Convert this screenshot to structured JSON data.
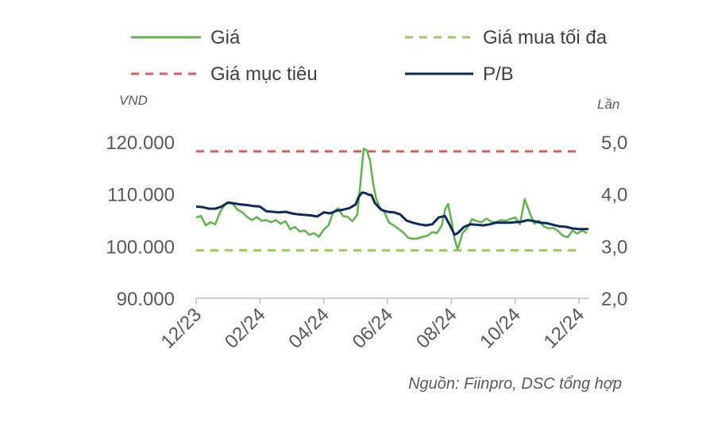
{
  "chart_data": {
    "type": "line",
    "title": "",
    "legend": [
      {
        "name": "Giá",
        "color": "#5DB44A",
        "dash": false
      },
      {
        "name": "Giá mua tối đa",
        "color": "#92D050",
        "dash": true
      },
      {
        "name": "Giá mục tiêu",
        "color": "#E05A5A",
        "dash": true
      },
      {
        "name": "P/B",
        "color": "#0D2A5C",
        "dash": false
      }
    ],
    "y_left": {
      "label": "VND",
      "min": 90000,
      "max": 120000,
      "ticks": [
        "90.000",
        "100.000",
        "110.000",
        "120.000"
      ],
      "tick_values": [
        90000,
        100000,
        110000,
        120000
      ]
    },
    "y_right": {
      "label": "Lần",
      "min": 2.0,
      "max": 5.0,
      "ticks": [
        "2,0",
        "3,0",
        "4,0",
        "5,0"
      ],
      "tick_values": [
        2.0,
        3.0,
        4.0,
        5.0
      ]
    },
    "x": {
      "min": 0,
      "max": 12.3,
      "tick_labels": [
        "12/23",
        "02/24",
        "04/24",
        "06/24",
        "08/24",
        "10/24",
        "12/24"
      ],
      "tick_values": [
        0,
        2,
        4,
        6,
        8,
        10,
        12
      ]
    },
    "reference_lines": [
      {
        "name": "Giá mục tiêu",
        "axis": "left",
        "value": 118200
      },
      {
        "name": "Giá mua tối đa",
        "axis": "left",
        "value": 99200
      }
    ],
    "series": [
      {
        "name": "Giá",
        "axis": "left",
        "x": [
          0,
          0.15,
          0.3,
          0.45,
          0.6,
          0.75,
          0.9,
          1.0,
          1.15,
          1.3,
          1.45,
          1.6,
          1.75,
          1.9,
          2.05,
          2.2,
          2.35,
          2.5,
          2.65,
          2.8,
          2.95,
          3.1,
          3.25,
          3.4,
          3.55,
          3.7,
          3.85,
          4.0,
          4.15,
          4.3,
          4.45,
          4.6,
          4.75,
          4.9,
          5.05,
          5.15,
          5.25,
          5.35,
          5.45,
          5.55,
          5.65,
          5.75,
          5.9,
          6.05,
          6.2,
          6.35,
          6.5,
          6.65,
          6.8,
          6.95,
          7.1,
          7.25,
          7.4,
          7.55,
          7.7,
          7.8,
          7.9,
          8.0,
          8.1,
          8.2,
          8.35,
          8.5,
          8.65,
          8.8,
          8.95,
          9.1,
          9.25,
          9.4,
          9.55,
          9.7,
          9.85,
          10.0,
          10.15,
          10.3,
          10.45,
          10.6,
          10.75,
          10.9,
          11.05,
          11.2,
          11.35,
          11.5,
          11.65,
          11.8,
          11.95,
          12.1,
          12.25
        ],
        "y": [
          105500,
          105800,
          104000,
          104600,
          104200,
          106500,
          108000,
          108300,
          108100,
          107000,
          106500,
          105600,
          105000,
          105600,
          104900,
          105000,
          104600,
          105000,
          104300,
          104800,
          103200,
          103700,
          102800,
          103000,
          102200,
          102500,
          101800,
          103200,
          104000,
          106500,
          107300,
          105800,
          105600,
          104800,
          106000,
          112000,
          118700,
          118400,
          116500,
          112000,
          109000,
          107500,
          106500,
          104500,
          104000,
          103300,
          102600,
          101600,
          101400,
          101500,
          101800,
          102000,
          102700,
          102500,
          104000,
          107000,
          108100,
          105000,
          101500,
          99400,
          102500,
          103500,
          105200,
          104800,
          104600,
          105300,
          104700,
          104600,
          105000,
          104900,
          105200,
          105500,
          104200,
          109000,
          106500,
          104300,
          104900,
          103800,
          103400,
          103500,
          102900,
          102000,
          101700,
          103000,
          102400,
          103000,
          102500
        ]
      },
      {
        "name": "P/B",
        "axis": "right",
        "x": [
          0,
          0.2,
          0.4,
          0.6,
          0.8,
          1.0,
          1.2,
          1.4,
          1.6,
          1.8,
          2.0,
          2.2,
          2.4,
          2.6,
          2.8,
          3.0,
          3.2,
          3.4,
          3.6,
          3.8,
          4.0,
          4.2,
          4.4,
          4.6,
          4.8,
          5.0,
          5.1,
          5.2,
          5.3,
          5.4,
          5.5,
          5.6,
          5.8,
          6.0,
          6.2,
          6.4,
          6.6,
          6.8,
          7.0,
          7.2,
          7.4,
          7.6,
          7.8,
          8.0,
          8.1,
          8.2,
          8.4,
          8.6,
          8.8,
          9.0,
          9.2,
          9.4,
          9.6,
          9.8,
          10.0,
          10.2,
          10.4,
          10.6,
          10.8,
          11.0,
          11.2,
          11.4,
          11.6,
          11.8,
          12.0,
          12.2,
          12.3
        ],
        "y": [
          3.76,
          3.75,
          3.72,
          3.72,
          3.76,
          3.84,
          3.82,
          3.8,
          3.79,
          3.77,
          3.76,
          3.67,
          3.66,
          3.65,
          3.66,
          3.63,
          3.61,
          3.6,
          3.59,
          3.57,
          3.65,
          3.63,
          3.68,
          3.7,
          3.73,
          3.8,
          3.95,
          4.03,
          4.02,
          3.99,
          3.98,
          3.83,
          3.7,
          3.66,
          3.65,
          3.61,
          3.49,
          3.45,
          3.42,
          3.4,
          3.42,
          3.55,
          3.58,
          3.35,
          3.22,
          3.25,
          3.37,
          3.42,
          3.41,
          3.4,
          3.42,
          3.45,
          3.45,
          3.45,
          3.46,
          3.47,
          3.5,
          3.48,
          3.45,
          3.44,
          3.41,
          3.38,
          3.37,
          3.34,
          3.33,
          3.33,
          3.33
        ]
      }
    ]
  },
  "source": "Nguồn: Fiinpro, DSC tổng hợp"
}
